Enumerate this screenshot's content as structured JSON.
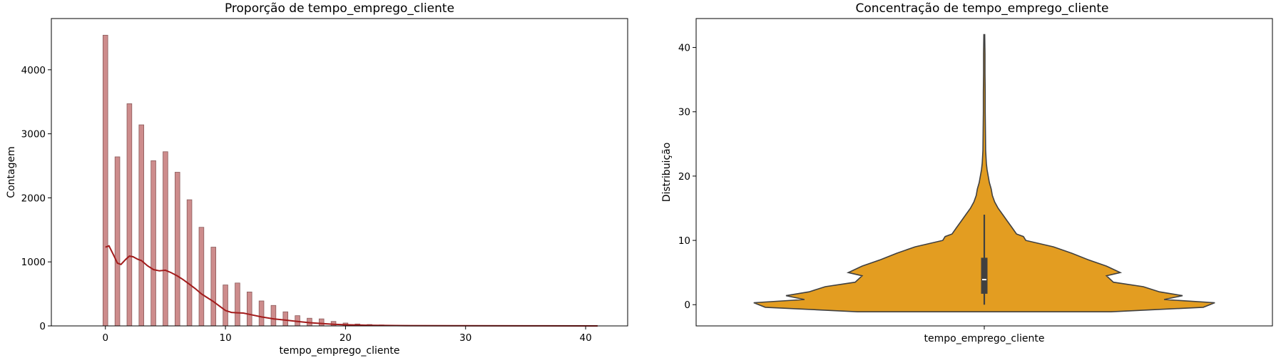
{
  "chart_data": [
    {
      "type": "histogram",
      "title": "Proporção de tempo_emprego_cliente",
      "xlabel": "tempo_emprego_cliente",
      "ylabel": "Contagem",
      "xlim": [
        -4.5,
        43.5
      ],
      "ylim": [
        0,
        4800
      ],
      "xticks": [
        0,
        10,
        20,
        30,
        40
      ],
      "yticks": [
        0,
        1000,
        2000,
        3000,
        4000
      ],
      "bar_width": 0.4,
      "bars": [
        {
          "x": 0,
          "value": 4540
        },
        {
          "x": 1,
          "value": 2640
        },
        {
          "x": 2,
          "value": 3470
        },
        {
          "x": 3,
          "value": 3140
        },
        {
          "x": 4,
          "value": 2580
        },
        {
          "x": 5,
          "value": 2720
        },
        {
          "x": 6,
          "value": 2400
        },
        {
          "x": 7,
          "value": 1970
        },
        {
          "x": 8,
          "value": 1540
        },
        {
          "x": 9,
          "value": 1230
        },
        {
          "x": 10,
          "value": 640
        },
        {
          "x": 11,
          "value": 670
        },
        {
          "x": 12,
          "value": 530
        },
        {
          "x": 13,
          "value": 390
        },
        {
          "x": 14,
          "value": 320
        },
        {
          "x": 15,
          "value": 220
        },
        {
          "x": 16,
          "value": 160
        },
        {
          "x": 17,
          "value": 120
        },
        {
          "x": 18,
          "value": 110
        },
        {
          "x": 19,
          "value": 70
        },
        {
          "x": 20,
          "value": 45
        },
        {
          "x": 21,
          "value": 30
        },
        {
          "x": 22,
          "value": 22
        },
        {
          "x": 23,
          "value": 15
        },
        {
          "x": 24,
          "value": 10
        },
        {
          "x": 25,
          "value": 8
        },
        {
          "x": 26,
          "value": 6
        },
        {
          "x": 27,
          "value": 5
        },
        {
          "x": 28,
          "value": 4
        },
        {
          "x": 29,
          "value": 3
        },
        {
          "x": 30,
          "value": 3
        },
        {
          "x": 31,
          "value": 2
        },
        {
          "x": 32,
          "value": 2
        },
        {
          "x": 33,
          "value": 2
        },
        {
          "x": 34,
          "value": 1
        },
        {
          "x": 35,
          "value": 1
        },
        {
          "x": 36,
          "value": 1
        },
        {
          "x": 37,
          "value": 1
        },
        {
          "x": 38,
          "value": 1
        },
        {
          "x": 39,
          "value": 1
        },
        {
          "x": 40,
          "value": 1
        }
      ],
      "kde": {
        "x": [
          0,
          0.3,
          0.7,
          1.0,
          1.3,
          1.7,
          2.0,
          2.3,
          2.7,
          3.0,
          3.5,
          4.0,
          4.5,
          5.0,
          5.5,
          6.0,
          6.5,
          7.0,
          7.5,
          8.0,
          8.5,
          9.0,
          9.5,
          10.0,
          10.5,
          11.0,
          11.5,
          12.0,
          13.0,
          14.0,
          15.0,
          16.0,
          17.0,
          18.0,
          19.0,
          20.0,
          22.0,
          25.0,
          30.0,
          35.0,
          41.0
        ],
        "y": [
          1230,
          1250,
          1100,
          980,
          960,
          1040,
          1090,
          1080,
          1040,
          1020,
          940,
          880,
          860,
          870,
          830,
          780,
          720,
          650,
          580,
          500,
          440,
          380,
          310,
          240,
          210,
          205,
          200,
          180,
          140,
          110,
          90,
          70,
          50,
          38,
          26,
          18,
          10,
          5,
          2,
          1,
          0
        ]
      },
      "colors": {
        "bar_fill": "#cd8c8c",
        "bar_edge": "#8a5a5a",
        "kde_line": "#a21b1b"
      }
    },
    {
      "type": "violin",
      "title": "Concentração de tempo_emprego_cliente",
      "xlabel": "tempo_emprego_cliente",
      "ylabel": "Distribuição",
      "ylim": [
        -3.3,
        44.5
      ],
      "yticks": [
        0,
        10,
        20,
        30,
        40
      ],
      "violin": {
        "y": [
          -1.1,
          -0.4,
          0.3,
          0.8,
          1.4,
          2.0,
          2.8,
          3.5,
          4.5,
          5.0,
          6.0,
          7.0,
          8.0,
          9.0,
          10.0,
          10.6,
          11.0,
          12.0,
          13.0,
          14.0,
          15.0,
          16.0,
          17.0,
          18.0,
          19.0,
          20.0,
          21.0,
          22.0,
          24.0,
          27.0,
          30.0,
          33.0,
          36.0,
          39.0,
          42.0
        ],
        "halfwidth": [
          0.55,
          0.95,
          1.0,
          0.78,
          0.86,
          0.76,
          0.69,
          0.56,
          0.53,
          0.59,
          0.53,
          0.45,
          0.38,
          0.3,
          0.18,
          0.17,
          0.14,
          0.12,
          0.1,
          0.08,
          0.06,
          0.045,
          0.035,
          0.03,
          0.022,
          0.017,
          0.012,
          0.009,
          0.006,
          0.005,
          0.004,
          0.004,
          0.003,
          0.003,
          0.002
        ]
      },
      "box": {
        "q1": 1.7,
        "median": 3.9,
        "q3": 7.3,
        "whisker_low": 0,
        "whisker_high": 14
      },
      "colors": {
        "fill": "#e39d21",
        "edge": "#404040",
        "box": "#404040",
        "median": "#ffffff"
      }
    }
  ]
}
